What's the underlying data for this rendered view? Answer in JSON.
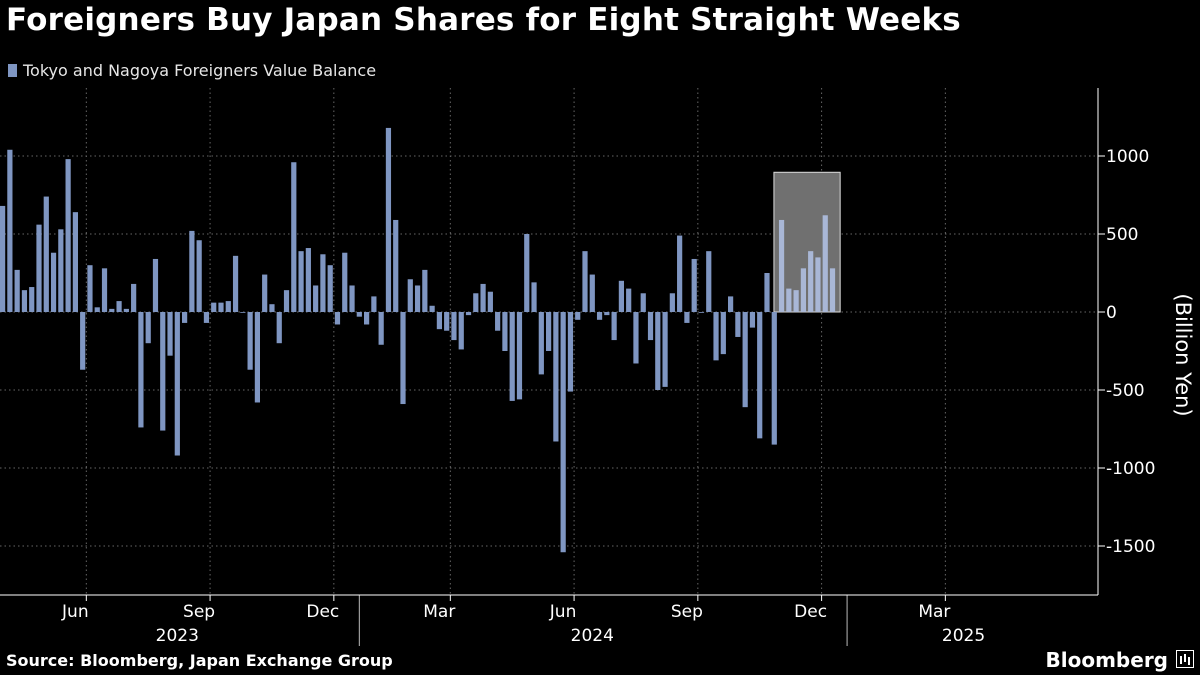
{
  "title": "Foreigners Buy Japan Shares for Eight Straight Weeks",
  "source": "Source: Bloomberg, Japan Exchange Group",
  "brand": "Bloomberg",
  "colors": {
    "background": "#000000",
    "bar": "#7f96c2",
    "highlight_bar": "#a9b7d6",
    "highlight_box": "#707070",
    "grid": "#666666"
  },
  "chart_data": {
    "type": "bar",
    "legend": "Tokyo and Nagoya Foreigners Value Balance",
    "ylabel": "(Billion Yen)",
    "ylim": [
      -1800,
      1450
    ],
    "yticks": [
      1000,
      500,
      0,
      -500,
      -1000,
      -1500
    ],
    "month_ticks": [
      {
        "label": "Jun",
        "index": 12
      },
      {
        "label": "Sep",
        "index": 29
      },
      {
        "label": "Dec",
        "index": 46
      },
      {
        "label": "Mar",
        "index": 62
      },
      {
        "label": "Jun",
        "index": 79
      },
      {
        "label": "Sep",
        "index": 96
      },
      {
        "label": "Dec",
        "index": 113
      },
      {
        "label": "Mar",
        "index": 130
      }
    ],
    "year_labels": [
      {
        "label": "2023",
        "index": 24
      },
      {
        "label": "2024",
        "index": 81
      },
      {
        "label": "2025",
        "index": 132
      }
    ],
    "year_separators": [
      49,
      116
    ],
    "values": [
      680,
      1040,
      270,
      140,
      160,
      560,
      740,
      380,
      530,
      980,
      640,
      -370,
      300,
      30,
      280,
      20,
      70,
      20,
      180,
      -740,
      -200,
      340,
      -760,
      -280,
      -920,
      -70,
      520,
      460,
      -70,
      60,
      60,
      70,
      360,
      0,
      -370,
      -580,
      240,
      50,
      -200,
      140,
      960,
      390,
      410,
      170,
      370,
      300,
      -80,
      380,
      170,
      -30,
      -80,
      100,
      -210,
      1180,
      590,
      -590,
      210,
      170,
      270,
      40,
      -110,
      -120,
      -180,
      -240,
      -20,
      120,
      180,
      130,
      -120,
      -250,
      -570,
      -560,
      500,
      190,
      -400,
      -250,
      -830,
      -1540,
      -510,
      -50,
      390,
      240,
      -50,
      -20,
      -180,
      200,
      150,
      -330,
      120,
      -180,
      -500,
      -480,
      120,
      490,
      -70,
      340,
      0,
      390,
      -310,
      -270,
      100,
      -160,
      -610,
      -100,
      -810,
      250,
      -850,
      590,
      150,
      140,
      280,
      390,
      350,
      620,
      280
    ],
    "highlight": {
      "start": 107,
      "end": 114,
      "label": "eight straight weeks"
    }
  }
}
